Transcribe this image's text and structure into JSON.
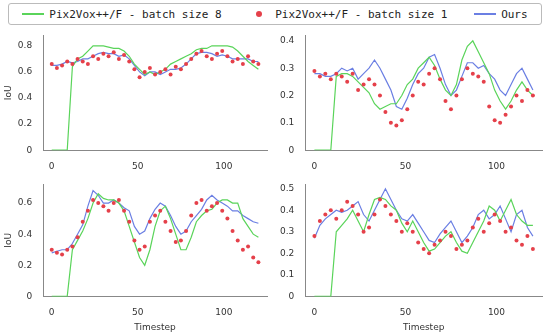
{
  "chart_data": [
    {
      "type": "line",
      "legend": "top",
      "grid": false,
      "y_label": "IoU",
      "x": [
        0,
        3,
        6,
        9,
        12,
        15,
        18,
        21,
        24,
        27,
        30,
        33,
        36,
        39,
        42,
        45,
        48,
        51,
        54,
        57,
        60,
        63,
        66,
        69,
        72,
        75,
        78,
        81,
        84,
        87,
        90,
        93,
        96,
        99,
        102,
        105,
        108,
        111,
        114,
        117,
        120
      ],
      "xlim": [
        -5,
        125
      ],
      "xticks": [
        0,
        50,
        100
      ],
      "ylim": [
        0,
        0.88
      ],
      "yticks": [
        0,
        0.2,
        0.4,
        0.6,
        0.8
      ],
      "series": [
        {
          "name": "Pix2Vox++/F - batch size 8",
          "color": "#5ad45a",
          "line_style": "solid",
          "values": [
            0,
            0,
            0,
            0,
            0.64,
            0.7,
            0.72,
            0.76,
            0.8,
            0.8,
            0.8,
            0.79,
            0.78,
            0.78,
            0.76,
            0.72,
            0.66,
            0.62,
            0.58,
            0.6,
            0.58,
            0.6,
            0.62,
            0.66,
            0.68,
            0.7,
            0.72,
            0.74,
            0.77,
            0.78,
            0.78,
            0.8,
            0.8,
            0.8,
            0.8,
            0.79,
            0.76,
            0.72,
            0.68,
            0.65,
            0.62
          ]
        },
        {
          "name": "Pix2Vox++/F - batch size 1",
          "color": "#e5404a",
          "line_style": "none",
          "marker": "circle",
          "values": [
            0.66,
            0.63,
            0.65,
            0.68,
            0.66,
            0.7,
            0.68,
            0.66,
            0.72,
            0.7,
            0.74,
            0.72,
            0.75,
            0.7,
            0.73,
            0.68,
            0.62,
            0.56,
            0.6,
            0.63,
            0.58,
            0.6,
            0.62,
            0.58,
            0.64,
            0.62,
            0.66,
            0.7,
            0.74,
            0.76,
            0.72,
            0.7,
            0.74,
            0.76,
            0.72,
            0.68,
            0.7,
            0.66,
            0.72,
            0.68,
            0.66
          ]
        },
        {
          "name": "Ours",
          "color": "#6b7fe3",
          "line_style": "solid",
          "values": [
            0.65,
            0.65,
            0.66,
            0.68,
            0.67,
            0.68,
            0.7,
            0.7,
            0.72,
            0.74,
            0.75,
            0.74,
            0.74,
            0.72,
            0.73,
            0.7,
            0.65,
            0.6,
            0.57,
            0.6,
            0.6,
            0.58,
            0.6,
            0.62,
            0.62,
            0.63,
            0.66,
            0.7,
            0.74,
            0.75,
            0.75,
            0.74,
            0.72,
            0.73,
            0.72,
            0.7,
            0.7,
            0.7,
            0.7,
            0.68,
            0.68
          ]
        }
      ]
    },
    {
      "type": "line",
      "grid": false,
      "x": [
        0,
        3,
        6,
        9,
        12,
        15,
        18,
        21,
        24,
        27,
        30,
        33,
        36,
        39,
        42,
        45,
        48,
        51,
        54,
        57,
        60,
        63,
        66,
        69,
        72,
        75,
        78,
        81,
        84,
        87,
        90,
        93,
        96,
        99,
        102,
        105,
        108,
        111,
        114,
        117,
        120
      ],
      "xlim": [
        -5,
        125
      ],
      "xticks": [
        0,
        50,
        100
      ],
      "ylim": [
        0,
        0.42
      ],
      "yticks": [
        0,
        0.1,
        0.2,
        0.3,
        0.4
      ],
      "series": [
        {
          "name": "Pix2Vox++/F - batch size 8",
          "color": "#5ad45a",
          "line_style": "solid",
          "values": [
            0,
            0,
            0,
            0,
            0.27,
            0.28,
            0.28,
            0.27,
            0.25,
            0.23,
            0.21,
            0.17,
            0.15,
            0.16,
            0.17,
            0.17,
            0.2,
            0.24,
            0.26,
            0.3,
            0.32,
            0.34,
            0.31,
            0.26,
            0.22,
            0.2,
            0.24,
            0.33,
            0.38,
            0.4,
            0.36,
            0.32,
            0.28,
            0.22,
            0.18,
            0.15,
            0.18,
            0.22,
            0.25,
            0.22,
            0.2
          ]
        },
        {
          "name": "Pix2Vox++/F - batch size 1",
          "color": "#e5404a",
          "line_style": "none",
          "marker": "circle",
          "values": [
            0.29,
            0.27,
            0.28,
            0.26,
            0.28,
            0.27,
            0.25,
            0.28,
            0.22,
            0.24,
            0.26,
            0.24,
            0.2,
            0.14,
            0.1,
            0.09,
            0.11,
            0.15,
            0.2,
            0.25,
            0.24,
            0.28,
            0.3,
            0.26,
            0.18,
            0.15,
            0.2,
            0.26,
            0.3,
            0.28,
            0.27,
            0.25,
            0.16,
            0.11,
            0.1,
            0.13,
            0.16,
            0.2,
            0.18,
            0.22,
            0.2
          ]
        },
        {
          "name": "Ours",
          "color": "#6b7fe3",
          "line_style": "solid",
          "values": [
            0.28,
            0.28,
            0.27,
            0.27,
            0.28,
            0.3,
            0.29,
            0.3,
            0.26,
            0.28,
            0.3,
            0.33,
            0.3,
            0.26,
            0.22,
            0.16,
            0.15,
            0.19,
            0.24,
            0.28,
            0.3,
            0.34,
            0.35,
            0.3,
            0.24,
            0.2,
            0.22,
            0.27,
            0.32,
            0.32,
            0.3,
            0.31,
            0.28,
            0.26,
            0.22,
            0.2,
            0.24,
            0.28,
            0.3,
            0.26,
            0.22
          ]
        }
      ]
    },
    {
      "type": "line",
      "grid": false,
      "y_label": "IoU",
      "x_label": "Timestep",
      "x": [
        0,
        3,
        6,
        9,
        12,
        15,
        18,
        21,
        24,
        27,
        30,
        33,
        36,
        39,
        42,
        45,
        48,
        51,
        54,
        57,
        60,
        63,
        66,
        69,
        72,
        75,
        78,
        81,
        84,
        87,
        90,
        93,
        96,
        99,
        102,
        105,
        108,
        111,
        114,
        117,
        120
      ],
      "xlim": [
        -5,
        125
      ],
      "xticks": [
        0,
        50,
        100
      ],
      "ylim": [
        0,
        0.72
      ],
      "yticks": [
        0,
        0.2,
        0.4,
        0.6
      ],
      "series": [
        {
          "name": "Pix2Vox++/F - batch size 8",
          "color": "#5ad45a",
          "line_style": "solid",
          "values": [
            0,
            0,
            0,
            0,
            0.3,
            0.36,
            0.42,
            0.5,
            0.6,
            0.66,
            0.63,
            0.62,
            0.62,
            0.6,
            0.55,
            0.45,
            0.35,
            0.25,
            0.2,
            0.3,
            0.45,
            0.55,
            0.58,
            0.5,
            0.4,
            0.3,
            0.3,
            0.38,
            0.48,
            0.52,
            0.55,
            0.56,
            0.6,
            0.62,
            0.62,
            0.6,
            0.6,
            0.5,
            0.45,
            0.4,
            0.38
          ]
        },
        {
          "name": "Pix2Vox++/F - batch size 1",
          "color": "#e5404a",
          "line_style": "none",
          "marker": "circle",
          "values": [
            0.3,
            0.28,
            0.27,
            0.3,
            0.32,
            0.38,
            0.48,
            0.55,
            0.62,
            0.6,
            0.58,
            0.55,
            0.6,
            0.62,
            0.55,
            0.48,
            0.36,
            0.3,
            0.32,
            0.48,
            0.52,
            0.55,
            0.48,
            0.42,
            0.35,
            0.36,
            0.42,
            0.52,
            0.6,
            0.62,
            0.55,
            0.58,
            0.6,
            0.55,
            0.5,
            0.42,
            0.36,
            0.3,
            0.32,
            0.25,
            0.22
          ]
        },
        {
          "name": "Ours",
          "color": "#6b7fe3",
          "line_style": "solid",
          "values": [
            0.28,
            0.29,
            0.3,
            0.3,
            0.34,
            0.4,
            0.46,
            0.58,
            0.68,
            0.65,
            0.6,
            0.6,
            0.62,
            0.6,
            0.57,
            0.55,
            0.45,
            0.4,
            0.42,
            0.5,
            0.56,
            0.6,
            0.58,
            0.52,
            0.45,
            0.4,
            0.42,
            0.48,
            0.52,
            0.56,
            0.62,
            0.65,
            0.62,
            0.6,
            0.58,
            0.55,
            0.55,
            0.52,
            0.5,
            0.48,
            0.47
          ]
        }
      ]
    },
    {
      "type": "line",
      "grid": false,
      "x_label": "Timestep",
      "x": [
        0,
        3,
        6,
        9,
        12,
        15,
        18,
        21,
        24,
        27,
        30,
        33,
        36,
        39,
        42,
        45,
        48,
        51,
        54,
        57,
        60,
        63,
        66,
        69,
        72,
        75,
        78,
        81,
        84,
        87,
        90,
        93,
        96,
        99,
        102,
        105,
        108,
        111,
        114,
        117,
        120
      ],
      "xlim": [
        -5,
        125
      ],
      "xticks": [
        0,
        50,
        100
      ],
      "ylim": [
        0,
        0.52
      ],
      "yticks": [
        0,
        0.1,
        0.2,
        0.3,
        0.4,
        0.5
      ],
      "series": [
        {
          "name": "Pix2Vox++/F - batch size 8",
          "color": "#5ad45a",
          "line_style": "solid",
          "values": [
            0,
            0,
            0,
            0,
            0.3,
            0.33,
            0.36,
            0.4,
            0.35,
            0.3,
            0.38,
            0.45,
            0.46,
            0.45,
            0.42,
            0.4,
            0.34,
            0.3,
            0.35,
            0.3,
            0.25,
            0.21,
            0.22,
            0.25,
            0.28,
            0.3,
            0.25,
            0.21,
            0.2,
            0.25,
            0.3,
            0.35,
            0.42,
            0.4,
            0.35,
            0.4,
            0.45,
            0.38,
            0.35,
            0.33,
            0.33
          ]
        },
        {
          "name": "Pix2Vox++/F - batch size 1",
          "color": "#e5404a",
          "line_style": "none",
          "marker": "circle",
          "values": [
            0.28,
            0.35,
            0.38,
            0.4,
            0.36,
            0.4,
            0.44,
            0.42,
            0.38,
            0.3,
            0.32,
            0.38,
            0.45,
            0.42,
            0.38,
            0.35,
            0.3,
            0.34,
            0.3,
            0.25,
            0.22,
            0.2,
            0.24,
            0.26,
            0.3,
            0.28,
            0.22,
            0.24,
            0.26,
            0.32,
            0.36,
            0.3,
            0.34,
            0.38,
            0.35,
            0.3,
            0.32,
            0.26,
            0.24,
            0.28,
            0.22
          ]
        },
        {
          "name": "Ours",
          "color": "#6b7fe3",
          "line_style": "solid",
          "values": [
            0.27,
            0.33,
            0.36,
            0.38,
            0.4,
            0.39,
            0.4,
            0.42,
            0.44,
            0.38,
            0.35,
            0.4,
            0.45,
            0.5,
            0.45,
            0.4,
            0.36,
            0.35,
            0.38,
            0.34,
            0.3,
            0.26,
            0.25,
            0.29,
            0.32,
            0.35,
            0.3,
            0.25,
            0.28,
            0.32,
            0.38,
            0.4,
            0.36,
            0.38,
            0.42,
            0.36,
            0.3,
            0.38,
            0.4,
            0.32,
            0.28
          ]
        }
      ]
    }
  ]
}
